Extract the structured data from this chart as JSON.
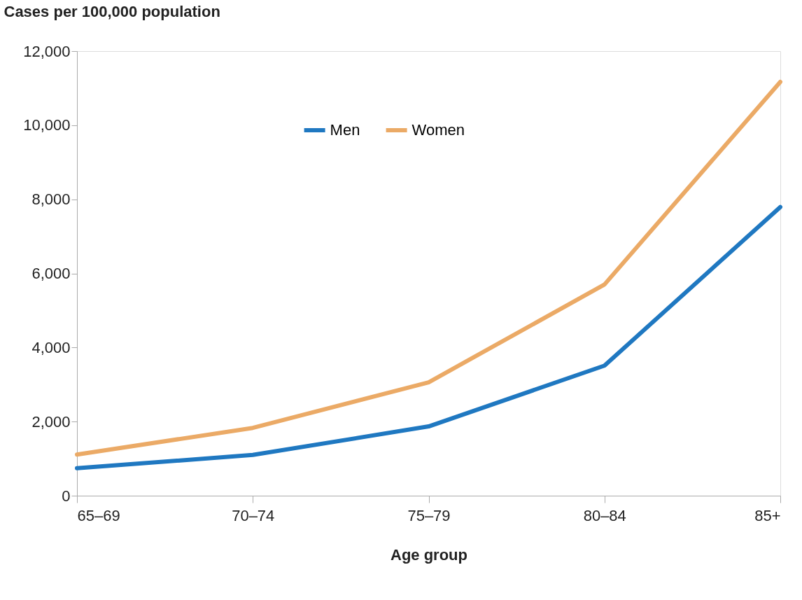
{
  "chart_data": {
    "type": "line",
    "ylabel": "Cases per 100,000 population",
    "xlabel": "Age group",
    "categories": [
      "65–69",
      "70–74",
      "75–79",
      "80–84",
      "85+"
    ],
    "series": [
      {
        "name": "Men",
        "color": "#1f78c1",
        "values": [
          740,
          1100,
          1870,
          3510,
          7790
        ]
      },
      {
        "name": "Women",
        "color": "#ebaa66",
        "values": [
          1110,
          1830,
          3060,
          5700,
          11170
        ]
      }
    ],
    "ylim": [
      0,
      12000
    ],
    "yticks": [
      0,
      {
        "value": 2000,
        "label": "2,000"
      },
      {
        "value": 4000,
        "label": "4,000"
      },
      {
        "value": 6000,
        "label": "6,000"
      },
      {
        "value": 8000,
        "label": "8,000"
      },
      {
        "value": 10000,
        "label": "10,000"
      },
      {
        "value": 12000,
        "label": "12,000"
      }
    ],
    "grid": false,
    "legend": "top",
    "marker": "none",
    "line_style": "solid"
  }
}
